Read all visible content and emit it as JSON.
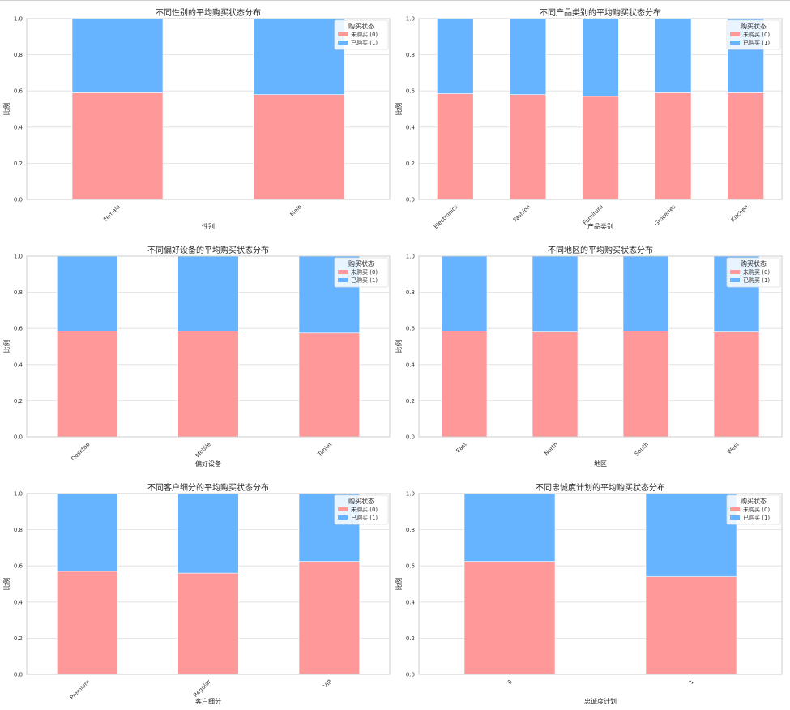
{
  "colors": {
    "not_purchased": "#ff9999",
    "purchased": "#66b3ff",
    "grid": "#dddddd",
    "frame": "#cccccc"
  },
  "chart_data": [
    {
      "type": "bar",
      "stacked": true,
      "title": "不同性别的平均购买状态分布",
      "xlabel": "性别",
      "ylabel": "比例",
      "ylim": [
        0,
        1
      ],
      "yticks": [
        "0.0",
        "0.2",
        "0.4",
        "0.6",
        "0.8",
        "1.0"
      ],
      "categories": [
        "Female",
        "Male"
      ],
      "series": [
        {
          "name": "未购买 (0)",
          "values": [
            0.59,
            0.58
          ]
        },
        {
          "name": "已购买 (1)",
          "values": [
            0.41,
            0.42
          ]
        }
      ],
      "legend": {
        "title": "购买状态",
        "position": "top-right"
      },
      "grid": true
    },
    {
      "type": "bar",
      "stacked": true,
      "title": "不同产品类别的平均购买状态分布",
      "xlabel": "产品类别",
      "ylabel": "比例",
      "ylim": [
        0,
        1
      ],
      "yticks": [
        "0.0",
        "0.2",
        "0.4",
        "0.6",
        "0.8",
        "1.0"
      ],
      "categories": [
        "Electronics",
        "Fashion",
        "Furniture",
        "Groceries",
        "Kitchen"
      ],
      "series": [
        {
          "name": "未购买 (0)",
          "values": [
            0.585,
            0.58,
            0.57,
            0.59,
            0.59
          ]
        },
        {
          "name": "已购买 (1)",
          "values": [
            0.415,
            0.42,
            0.43,
            0.41,
            0.41
          ]
        }
      ],
      "legend": {
        "title": "购买状态",
        "position": "top-right"
      },
      "grid": true
    },
    {
      "type": "bar",
      "stacked": true,
      "title": "不同偏好设备的平均购买状态分布",
      "xlabel": "偏好设备",
      "ylabel": "比例",
      "ylim": [
        0,
        1
      ],
      "yticks": [
        "0.0",
        "0.2",
        "0.4",
        "0.6",
        "0.8",
        "1.0"
      ],
      "categories": [
        "Desktop",
        "Mobile",
        "Tablet"
      ],
      "series": [
        {
          "name": "未购买 (0)",
          "values": [
            0.585,
            0.585,
            0.575
          ]
        },
        {
          "name": "已购买 (1)",
          "values": [
            0.415,
            0.415,
            0.425
          ]
        }
      ],
      "legend": {
        "title": "购买状态",
        "position": "top-right"
      },
      "grid": true
    },
    {
      "type": "bar",
      "stacked": true,
      "title": "不同地区的平均购买状态分布",
      "xlabel": "地区",
      "ylabel": "比例",
      "ylim": [
        0,
        1
      ],
      "yticks": [
        "0.0",
        "0.2",
        "0.4",
        "0.6",
        "0.8",
        "1.0"
      ],
      "categories": [
        "East",
        "North",
        "South",
        "West"
      ],
      "series": [
        {
          "name": "未购买 (0)",
          "values": [
            0.585,
            0.58,
            0.585,
            0.58
          ]
        },
        {
          "name": "已购买 (1)",
          "values": [
            0.415,
            0.42,
            0.415,
            0.42
          ]
        }
      ],
      "legend": {
        "title": "购买状态",
        "position": "top-right"
      },
      "grid": true
    },
    {
      "type": "bar",
      "stacked": true,
      "title": "不同客户细分的平均购买状态分布",
      "xlabel": "客户细分",
      "ylabel": "比例",
      "ylim": [
        0,
        1
      ],
      "yticks": [
        "0.0",
        "0.2",
        "0.4",
        "0.6",
        "0.8",
        "1.0"
      ],
      "categories": [
        "Premium",
        "Regular",
        "VIP"
      ],
      "series": [
        {
          "name": "未购买 (0)",
          "values": [
            0.57,
            0.56,
            0.625
          ]
        },
        {
          "name": "已购买 (1)",
          "values": [
            0.43,
            0.44,
            0.375
          ]
        }
      ],
      "legend": {
        "title": "购买状态",
        "position": "top-right"
      },
      "grid": true
    },
    {
      "type": "bar",
      "stacked": true,
      "title": "不同忠诚度计划的平均购买状态分布",
      "xlabel": "忠诚度计划",
      "ylabel": "比例",
      "ylim": [
        0,
        1
      ],
      "yticks": [
        "0.0",
        "0.2",
        "0.4",
        "0.6",
        "0.8",
        "1.0"
      ],
      "categories": [
        "0",
        "1"
      ],
      "series": [
        {
          "name": "未购买 (0)",
          "values": [
            0.625,
            0.54
          ]
        },
        {
          "name": "已购买 (1)",
          "values": [
            0.375,
            0.46
          ]
        }
      ],
      "legend": {
        "title": "购买状态",
        "position": "top-right"
      },
      "grid": true
    }
  ]
}
